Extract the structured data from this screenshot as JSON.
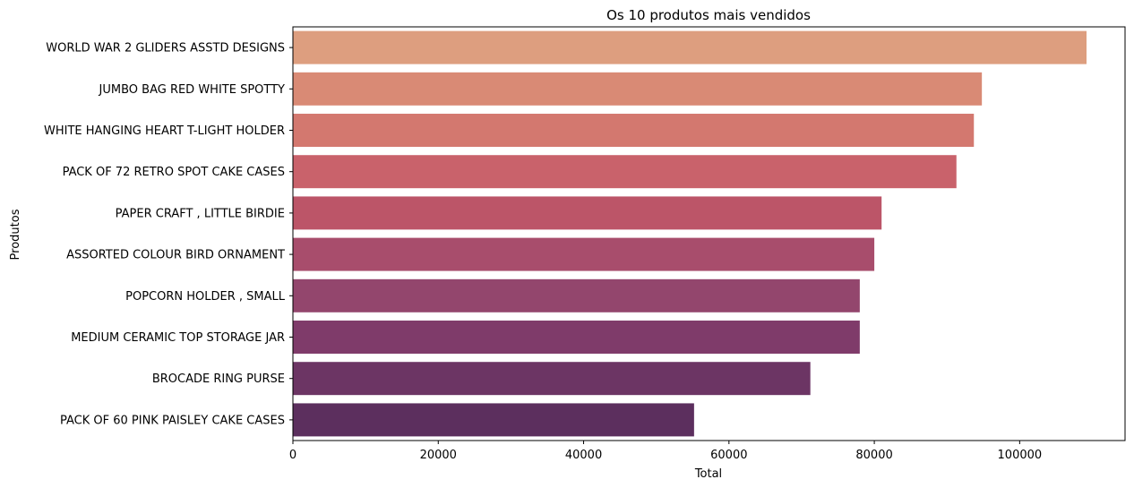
{
  "chart_data": {
    "type": "bar",
    "orientation": "horizontal",
    "title": "Os 10 produtos mais vendidos",
    "xlabel": "Total",
    "ylabel": "Produtos",
    "xlim": [
      0,
      114500
    ],
    "xticks": [
      0,
      20000,
      40000,
      60000,
      80000,
      100000
    ],
    "categories": [
      "WORLD WAR 2 GLIDERS ASSTD DESIGNS",
      "JUMBO BAG RED WHITE SPOTTY ",
      "WHITE HANGING HEART T-LIGHT HOLDER",
      "PACK OF 72 RETRO SPOT CAKE CASES",
      "PAPER CRAFT , LITTLE BIRDIE",
      "ASSORTED COLOUR BIRD ORNAMENT",
      "POPCORN HOLDER , SMALL ",
      "MEDIUM CERAMIC TOP STORAGE JAR",
      "BROCADE RING PURSE ",
      "PACK OF 60 PINK PAISLEY CAKE CASES"
    ],
    "values": [
      109200,
      94800,
      93700,
      91300,
      81000,
      80000,
      78000,
      78000,
      71200,
      55200
    ],
    "colors": [
      "#dd9e7f",
      "#d98a75",
      "#d3786f",
      "#c9626b",
      "#bc5568",
      "#a84d6c",
      "#93466d",
      "#7f3b6a",
      "#6c3564",
      "#5c2f5e"
    ],
    "grid": false,
    "legend": "none"
  }
}
